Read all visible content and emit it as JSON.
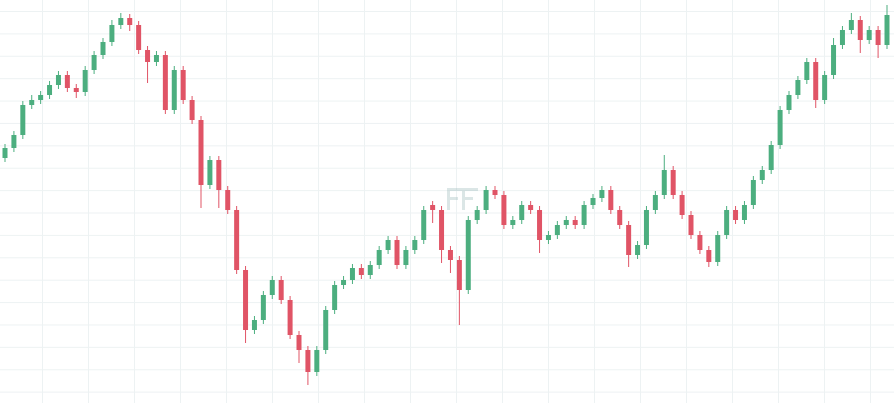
{
  "chart_data": {
    "type": "candlestick",
    "up_color": "#4cae7f",
    "down_color": "#e05466",
    "ylim": [
      0,
      403
    ],
    "open": [
      245,
      255,
      268,
      298,
      303,
      308,
      318,
      328,
      315,
      311,
      333,
      348,
      361,
      378,
      385,
      378,
      353,
      341,
      348,
      293,
      333,
      303,
      283,
      218,
      243,
      213,
      193,
      133,
      73,
      83,
      108,
      123,
      103,
      68,
      53,
      31,
      53,
      93,
      118,
      123,
      135,
      128,
      138,
      153,
      163,
      138,
      153,
      163,
      198,
      193,
      153,
      143,
      113,
      183,
      193,
      213,
      208,
      178,
      183,
      198,
      193,
      163,
      168,
      178,
      183,
      178,
      198,
      205,
      213,
      193,
      178,
      148,
      158,
      193,
      208,
      233,
      208,
      188,
      168,
      153,
      141,
      168,
      193,
      183,
      198,
      223,
      233,
      258,
      293,
      308,
      323,
      341,
      303,
      328,
      358,
      373,
      383,
      363,
      373,
      358
    ],
    "high": [
      259,
      272,
      302,
      308,
      312,
      322,
      332,
      332,
      319,
      337,
      352,
      365,
      383,
      390,
      389,
      382,
      357,
      352,
      352,
      337,
      337,
      307,
      287,
      247,
      247,
      217,
      197,
      137,
      87,
      112,
      127,
      127,
      107,
      72,
      57,
      57,
      97,
      122,
      127,
      139,
      139,
      142,
      157,
      167,
      167,
      157,
      167,
      197,
      202,
      197,
      157,
      147,
      187,
      197,
      217,
      217,
      212,
      187,
      202,
      202,
      197,
      172,
      182,
      187,
      187,
      202,
      209,
      217,
      217,
      197,
      182,
      162,
      197,
      212,
      248,
      237,
      212,
      192,
      172,
      157,
      172,
      197,
      197,
      202,
      227,
      237,
      262,
      297,
      312,
      327,
      345,
      345,
      332,
      365,
      377,
      390,
      387,
      377,
      377,
      398
    ],
    "low": [
      241,
      251,
      264,
      294,
      299,
      304,
      314,
      311,
      305,
      307,
      329,
      344,
      357,
      374,
      372,
      349,
      320,
      337,
      289,
      289,
      299,
      279,
      195,
      214,
      195,
      189,
      129,
      60,
      69,
      79,
      104,
      99,
      64,
      40,
      18,
      27,
      49,
      89,
      114,
      119,
      124,
      124,
      134,
      149,
      134,
      134,
      149,
      159,
      180,
      140,
      130,
      78,
      109,
      179,
      189,
      204,
      174,
      174,
      179,
      189,
      150,
      159,
      164,
      174,
      174,
      174,
      194,
      201,
      189,
      174,
      136,
      144,
      154,
      189,
      204,
      204,
      184,
      164,
      149,
      136,
      137,
      164,
      179,
      179,
      194,
      219,
      229,
      254,
      289,
      304,
      319,
      295,
      299,
      324,
      354,
      369,
      350,
      359,
      345,
      354
    ],
    "close": [
      255,
      268,
      298,
      303,
      308,
      318,
      328,
      315,
      311,
      333,
      348,
      361,
      378,
      385,
      378,
      353,
      341,
      348,
      293,
      333,
      303,
      283,
      218,
      243,
      213,
      193,
      133,
      73,
      83,
      108,
      123,
      103,
      68,
      53,
      31,
      53,
      93,
      118,
      123,
      135,
      128,
      138,
      153,
      163,
      138,
      153,
      163,
      193,
      193,
      153,
      143,
      113,
      183,
      193,
      213,
      208,
      178,
      183,
      198,
      193,
      163,
      168,
      178,
      183,
      178,
      198,
      205,
      213,
      193,
      178,
      148,
      158,
      193,
      208,
      233,
      208,
      188,
      168,
      153,
      141,
      168,
      193,
      183,
      198,
      223,
      233,
      258,
      293,
      308,
      323,
      341,
      303,
      328,
      358,
      373,
      383,
      363,
      373,
      358,
      388
    ]
  }
}
